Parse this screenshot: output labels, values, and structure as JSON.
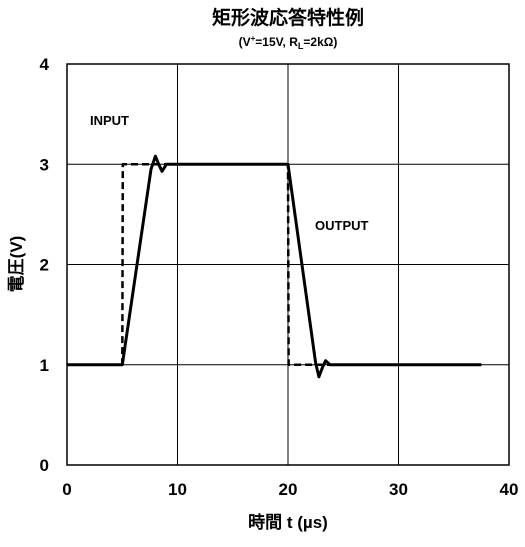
{
  "chart_data": {
    "type": "line",
    "title": "矩形波応答特性例",
    "subtitle": {
      "prefix": "(V",
      "sup": "+",
      "mid": "=15V, R",
      "sub": "L",
      "suffix": "=2kΩ)"
    },
    "xlabel": "時間 t (µs)",
    "ylabel": "電圧(V)",
    "xlim": [
      0,
      40
    ],
    "ylim": [
      0,
      4
    ],
    "xticks": [
      "0",
      "10",
      "20",
      "30",
      "40"
    ],
    "yticks": [
      "0",
      "1",
      "2",
      "3",
      "4"
    ],
    "grid": true,
    "annotations": [
      "INPUT",
      "OUTPUT"
    ],
    "series": [
      {
        "name": "INPUT",
        "style": "dashed",
        "x": [
          0,
          5,
          5.05,
          20,
          20.05,
          24
        ],
        "y": [
          1,
          1,
          3,
          3,
          1,
          1
        ]
      },
      {
        "name": "OUTPUT",
        "style": "solid",
        "x": [
          0,
          5,
          7.6,
          8.0,
          8.3,
          8.6,
          9.0,
          10,
          20,
          22.5,
          22.8,
          23.1,
          23.4,
          23.8,
          25,
          37.5
        ],
        "y": [
          1,
          1,
          2.95,
          3.08,
          3.0,
          2.93,
          3.0,
          3.0,
          3.0,
          1.02,
          0.88,
          0.97,
          1.04,
          1.0,
          1.0,
          1.0
        ]
      }
    ]
  }
}
